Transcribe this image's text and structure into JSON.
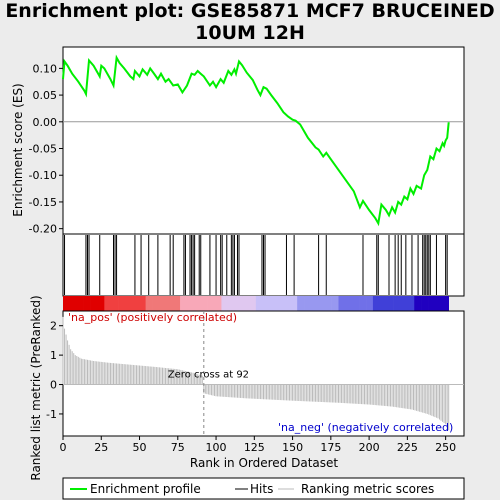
{
  "title_line1": "Enrichment plot: GSE85871 MCF7 BRUCEINED",
  "title_line2": "10UM 12H",
  "chart_data": {
    "type": "line",
    "upper": {
      "ylabel": "Enrichment score (ES)",
      "ylim": [
        -0.21,
        0.14
      ],
      "yticks": [
        0.1,
        0.05,
        0.0,
        -0.05,
        -0.1,
        -0.15,
        -0.2
      ],
      "ytick_labels": [
        "0.10",
        "0.05",
        "0.00",
        "-0.05",
        "-0.10",
        "-0.15",
        "-0.20"
      ],
      "line_color": "#00ee00",
      "es_curve": [
        [
          0,
          0.08
        ],
        [
          1,
          0.113
        ],
        [
          3,
          0.105
        ],
        [
          6,
          0.09
        ],
        [
          10,
          0.075
        ],
        [
          14,
          0.058
        ],
        [
          15,
          0.052
        ],
        [
          17,
          0.115
        ],
        [
          20,
          0.105
        ],
        [
          23,
          0.09
        ],
        [
          24,
          0.085
        ],
        [
          25,
          0.105
        ],
        [
          27,
          0.1
        ],
        [
          31,
          0.08
        ],
        [
          33,
          0.068
        ],
        [
          35,
          0.12
        ],
        [
          37,
          0.11
        ],
        [
          40,
          0.1
        ],
        [
          44,
          0.085
        ],
        [
          46,
          0.08
        ],
        [
          47,
          0.095
        ],
        [
          50,
          0.085
        ],
        [
          52,
          0.098
        ],
        [
          55,
          0.088
        ],
        [
          57,
          0.1
        ],
        [
          59,
          0.092
        ],
        [
          62,
          0.08
        ],
        [
          64,
          0.09
        ],
        [
          67,
          0.075
        ],
        [
          69,
          0.08
        ],
        [
          72,
          0.068
        ],
        [
          75,
          0.07
        ],
        [
          78,
          0.055
        ],
        [
          81,
          0.068
        ],
        [
          84,
          0.09
        ],
        [
          86,
          0.088
        ],
        [
          88,
          0.095
        ],
        [
          90,
          0.09
        ],
        [
          92,
          0.085
        ],
        [
          96,
          0.068
        ],
        [
          98,
          0.075
        ],
        [
          100,
          0.065
        ],
        [
          103,
          0.08
        ],
        [
          105,
          0.073
        ],
        [
          108,
          0.095
        ],
        [
          110,
          0.088
        ],
        [
          112,
          0.098
        ],
        [
          113,
          0.09
        ],
        [
          115,
          0.113
        ],
        [
          117,
          0.106
        ],
        [
          120,
          0.092
        ],
        [
          124,
          0.078
        ],
        [
          127,
          0.06
        ],
        [
          129,
          0.05
        ],
        [
          131,
          0.065
        ],
        [
          133,
          0.062
        ],
        [
          136,
          0.05
        ],
        [
          140,
          0.035
        ],
        [
          144,
          0.018
        ],
        [
          147,
          0.01
        ],
        [
          150,
          0.004
        ],
        [
          152,
          0.002
        ],
        [
          155,
          -0.005
        ],
        [
          160,
          -0.03
        ],
        [
          165,
          -0.048
        ],
        [
          167,
          -0.052
        ],
        [
          170,
          -0.065
        ],
        [
          172,
          -0.058
        ],
        [
          175,
          -0.07
        ],
        [
          180,
          -0.09
        ],
        [
          185,
          -0.11
        ],
        [
          190,
          -0.13
        ],
        [
          194,
          -0.16
        ],
        [
          196,
          -0.148
        ],
        [
          200,
          -0.165
        ],
        [
          204,
          -0.18
        ],
        [
          206,
          -0.19
        ],
        [
          208,
          -0.155
        ],
        [
          211,
          -0.165
        ],
        [
          213,
          -0.175
        ],
        [
          215,
          -0.16
        ],
        [
          217,
          -0.17
        ],
        [
          219,
          -0.15
        ],
        [
          221,
          -0.155
        ],
        [
          223,
          -0.14
        ],
        [
          225,
          -0.145
        ],
        [
          227,
          -0.125
        ],
        [
          229,
          -0.135
        ],
        [
          231,
          -0.12
        ],
        [
          234,
          -0.125
        ],
        [
          236,
          -0.1
        ],
        [
          238,
          -0.09
        ],
        [
          240,
          -0.065
        ],
        [
          242,
          -0.07
        ],
        [
          244,
          -0.05
        ],
        [
          246,
          -0.055
        ],
        [
          248,
          -0.04
        ],
        [
          249,
          -0.045
        ],
        [
          250,
          -0.035
        ],
        [
          251,
          -0.03
        ],
        [
          252,
          -0.001
        ]
      ]
    },
    "hits": [
      1,
      15,
      16,
      17,
      24,
      33,
      34,
      35,
      47,
      51,
      56,
      62,
      70,
      72,
      79,
      80,
      83,
      84,
      85,
      86,
      89,
      90,
      96,
      100,
      103,
      104,
      107,
      110,
      111,
      112,
      114,
      115,
      130,
      131,
      132,
      146,
      151,
      167,
      172,
      196,
      205,
      206,
      213,
      217,
      219,
      221,
      224,
      228,
      232,
      235,
      236,
      237,
      238,
      239,
      240,
      244,
      250,
      251
    ],
    "lower": {
      "ylabel": "Ranked list metric (PreRanked)",
      "ylim": [
        -1.75,
        2.5
      ],
      "yticks": [
        2,
        1,
        0,
        -1
      ],
      "ytick_labels": [
        "2",
        "1",
        "0",
        "-1"
      ],
      "metric": [
        [
          0,
          2.3
        ],
        [
          1,
          1.9
        ],
        [
          2,
          1.7
        ],
        [
          3,
          1.5
        ],
        [
          5,
          1.2
        ],
        [
          8,
          1.0
        ],
        [
          12,
          0.88
        ],
        [
          20,
          0.8
        ],
        [
          30,
          0.74
        ],
        [
          45,
          0.67
        ],
        [
          60,
          0.6
        ],
        [
          75,
          0.52
        ],
        [
          85,
          0.4
        ],
        [
          91,
          0.3
        ],
        [
          92,
          -0.3
        ],
        [
          100,
          -0.4
        ],
        [
          120,
          -0.47
        ],
        [
          150,
          -0.55
        ],
        [
          180,
          -0.62
        ],
        [
          200,
          -0.68
        ],
        [
          215,
          -0.75
        ],
        [
          228,
          -0.85
        ],
        [
          238,
          -1.0
        ],
        [
          245,
          -1.15
        ],
        [
          250,
          -1.35
        ],
        [
          252,
          -1.55
        ]
      ],
      "label_pos": "'na_pos' (positively correlated)",
      "label_neg": "'na_neg' (negatively correlated)",
      "zero_cross_label": "Zero cross at 92",
      "zero_cross": 92
    },
    "x": {
      "label": "Rank in Ordered Dataset",
      "xlim": [
        0,
        262
      ],
      "ticks": [
        0,
        25,
        50,
        75,
        100,
        125,
        150,
        175,
        200,
        225,
        250
      ],
      "tick_labels": [
        "0",
        "25",
        "50",
        "75",
        "100",
        "125",
        "150",
        "175",
        "200",
        "225",
        "250"
      ],
      "n": 252
    },
    "legend": {
      "placement": "bottom",
      "items": [
        {
          "label": "Enrichment profile",
          "color": "#00ee00"
        },
        {
          "label": "Hits",
          "color": "#000000"
        },
        {
          "label": "Ranking metric scores",
          "color": "#bbbbbb"
        }
      ]
    },
    "heatmap_colors": [
      "#e00000",
      "#f04040",
      "#f07878",
      "#f8a8b8",
      "#e0c8f0",
      "#c8c0f8",
      "#9898f0",
      "#7070e8",
      "#4040d8",
      "#2000c0"
    ]
  }
}
